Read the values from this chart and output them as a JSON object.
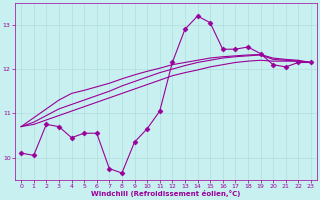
{
  "xlabel": "Windchill (Refroidissement éolien,°C)",
  "bg_color": "#c8f0f0",
  "line_color": "#990099",
  "grid_color": "#b0dede",
  "xlim": [
    -0.5,
    23.5
  ],
  "ylim": [
    9.5,
    13.5
  ],
  "yticks": [
    10,
    11,
    12,
    13
  ],
  "xticks": [
    0,
    1,
    2,
    3,
    4,
    5,
    6,
    7,
    8,
    9,
    10,
    11,
    12,
    13,
    14,
    15,
    16,
    17,
    18,
    19,
    20,
    21,
    22,
    23
  ],
  "main_line": [
    10.1,
    10.05,
    10.75,
    10.7,
    10.45,
    10.55,
    10.55,
    9.75,
    9.65,
    10.35,
    10.65,
    11.05,
    12.15,
    12.9,
    13.2,
    13.05,
    12.45,
    12.45,
    12.5,
    12.35,
    12.1,
    12.05,
    12.15,
    12.15
  ],
  "trend1": [
    10.7,
    10.75,
    10.85,
    10.95,
    11.05,
    11.15,
    11.25,
    11.35,
    11.45,
    11.55,
    11.65,
    11.75,
    11.85,
    11.92,
    11.98,
    12.05,
    12.1,
    12.15,
    12.18,
    12.2,
    12.18,
    12.18,
    12.18,
    12.15
  ],
  "trend2": [
    10.7,
    10.8,
    10.95,
    11.1,
    11.2,
    11.3,
    11.4,
    11.5,
    11.62,
    11.72,
    11.82,
    11.92,
    12.0,
    12.08,
    12.15,
    12.2,
    12.25,
    12.28,
    12.3,
    12.32,
    12.22,
    12.2,
    12.18,
    12.15
  ],
  "trend3": [
    10.7,
    10.9,
    11.1,
    11.3,
    11.45,
    11.52,
    11.6,
    11.68,
    11.78,
    11.87,
    11.95,
    12.02,
    12.1,
    12.15,
    12.2,
    12.25,
    12.28,
    12.3,
    12.32,
    12.33,
    12.25,
    12.22,
    12.2,
    12.15
  ]
}
